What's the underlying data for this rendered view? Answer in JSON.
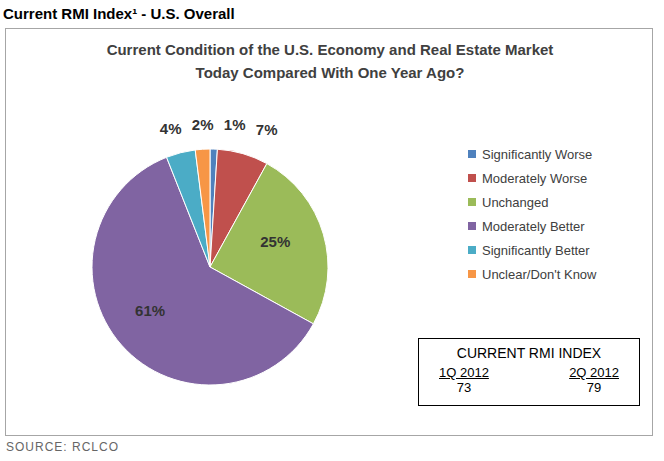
{
  "chart_data": {
    "type": "pie",
    "header": "Current RMI Index¹ - U.S. Overall",
    "title": "Current Condition of the U.S. Economy and Real Estate Market Today Compared With One Year Ago?",
    "categories": [
      "Significantly Worse",
      "Moderately Worse",
      "Unchanged",
      "Moderately Better",
      "Significantly Better",
      "Unclear/Don't Know"
    ],
    "values": [
      1,
      7,
      25,
      61,
      4,
      2
    ],
    "value_labels": [
      "1%",
      "7%",
      "25%",
      "61%",
      "4%",
      "2%"
    ],
    "colors": [
      "#4F81BD",
      "#C0504D",
      "#9BBB59",
      "#8064A2",
      "#4BACC6",
      "#F79646"
    ],
    "data_labels": true,
    "legend": "right",
    "rmi_index": {
      "title": "CURRENT RMI INDEX",
      "categories": [
        "1Q 2012",
        "2Q 2012"
      ],
      "values": [
        73,
        79
      ]
    },
    "source": "SOURCE: RCLCO"
  }
}
